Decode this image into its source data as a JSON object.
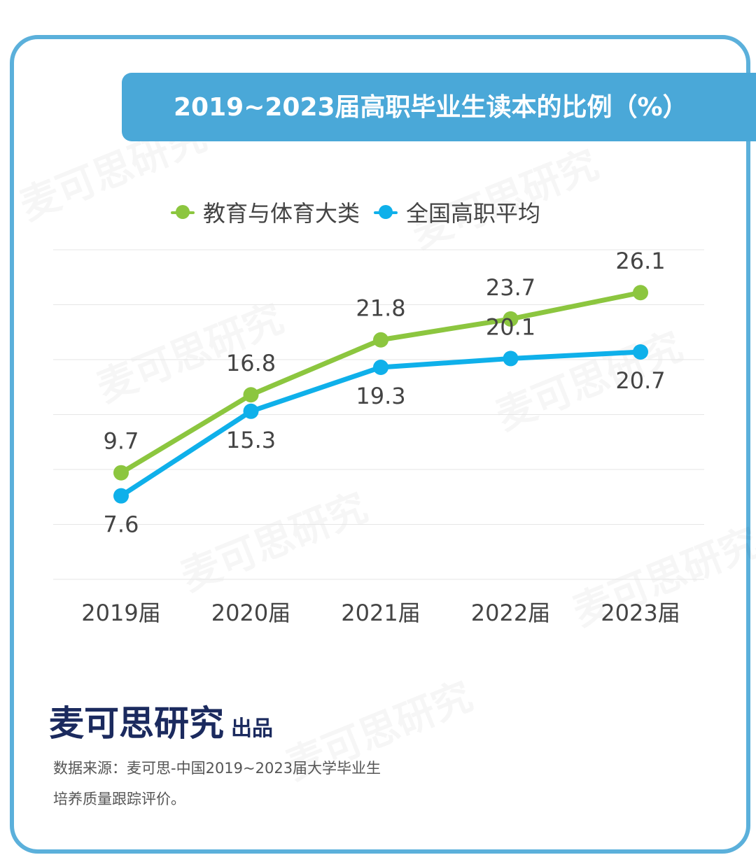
{
  "title": "2019~2023届高职毕业生读本的比例（%）",
  "watermark": "麦可思研究",
  "publisher": {
    "name": "麦可思研究",
    "suffix": "出品"
  },
  "source": {
    "line1": "数据来源：麦可思-中国2019~2023届大学毕业生",
    "line2": "培养质量跟踪评价。"
  },
  "colors": {
    "banner": "#4aa8d8",
    "border": "#5bb0db",
    "green": "#8cc63f",
    "blue": "#0fb0ea"
  },
  "chart_data": {
    "type": "line",
    "categories": [
      "2019届",
      "2020届",
      "2021届",
      "2022届",
      "2023届"
    ],
    "series": [
      {
        "name": "教育与体育大类",
        "color": "#8cc63f",
        "values": [
          9.7,
          16.8,
          21.8,
          23.7,
          26.1
        ],
        "label_position": "above"
      },
      {
        "name": "全国高职平均",
        "color": "#0fb0ea",
        "values": [
          7.6,
          15.3,
          19.3,
          20.1,
          20.7
        ],
        "label_position": [
          "below",
          "below",
          "below",
          "above",
          "below"
        ]
      }
    ],
    "ylim": [
      0,
      30
    ],
    "grid": true,
    "legend": "top-center",
    "xlabel": "",
    "ylabel": ""
  }
}
